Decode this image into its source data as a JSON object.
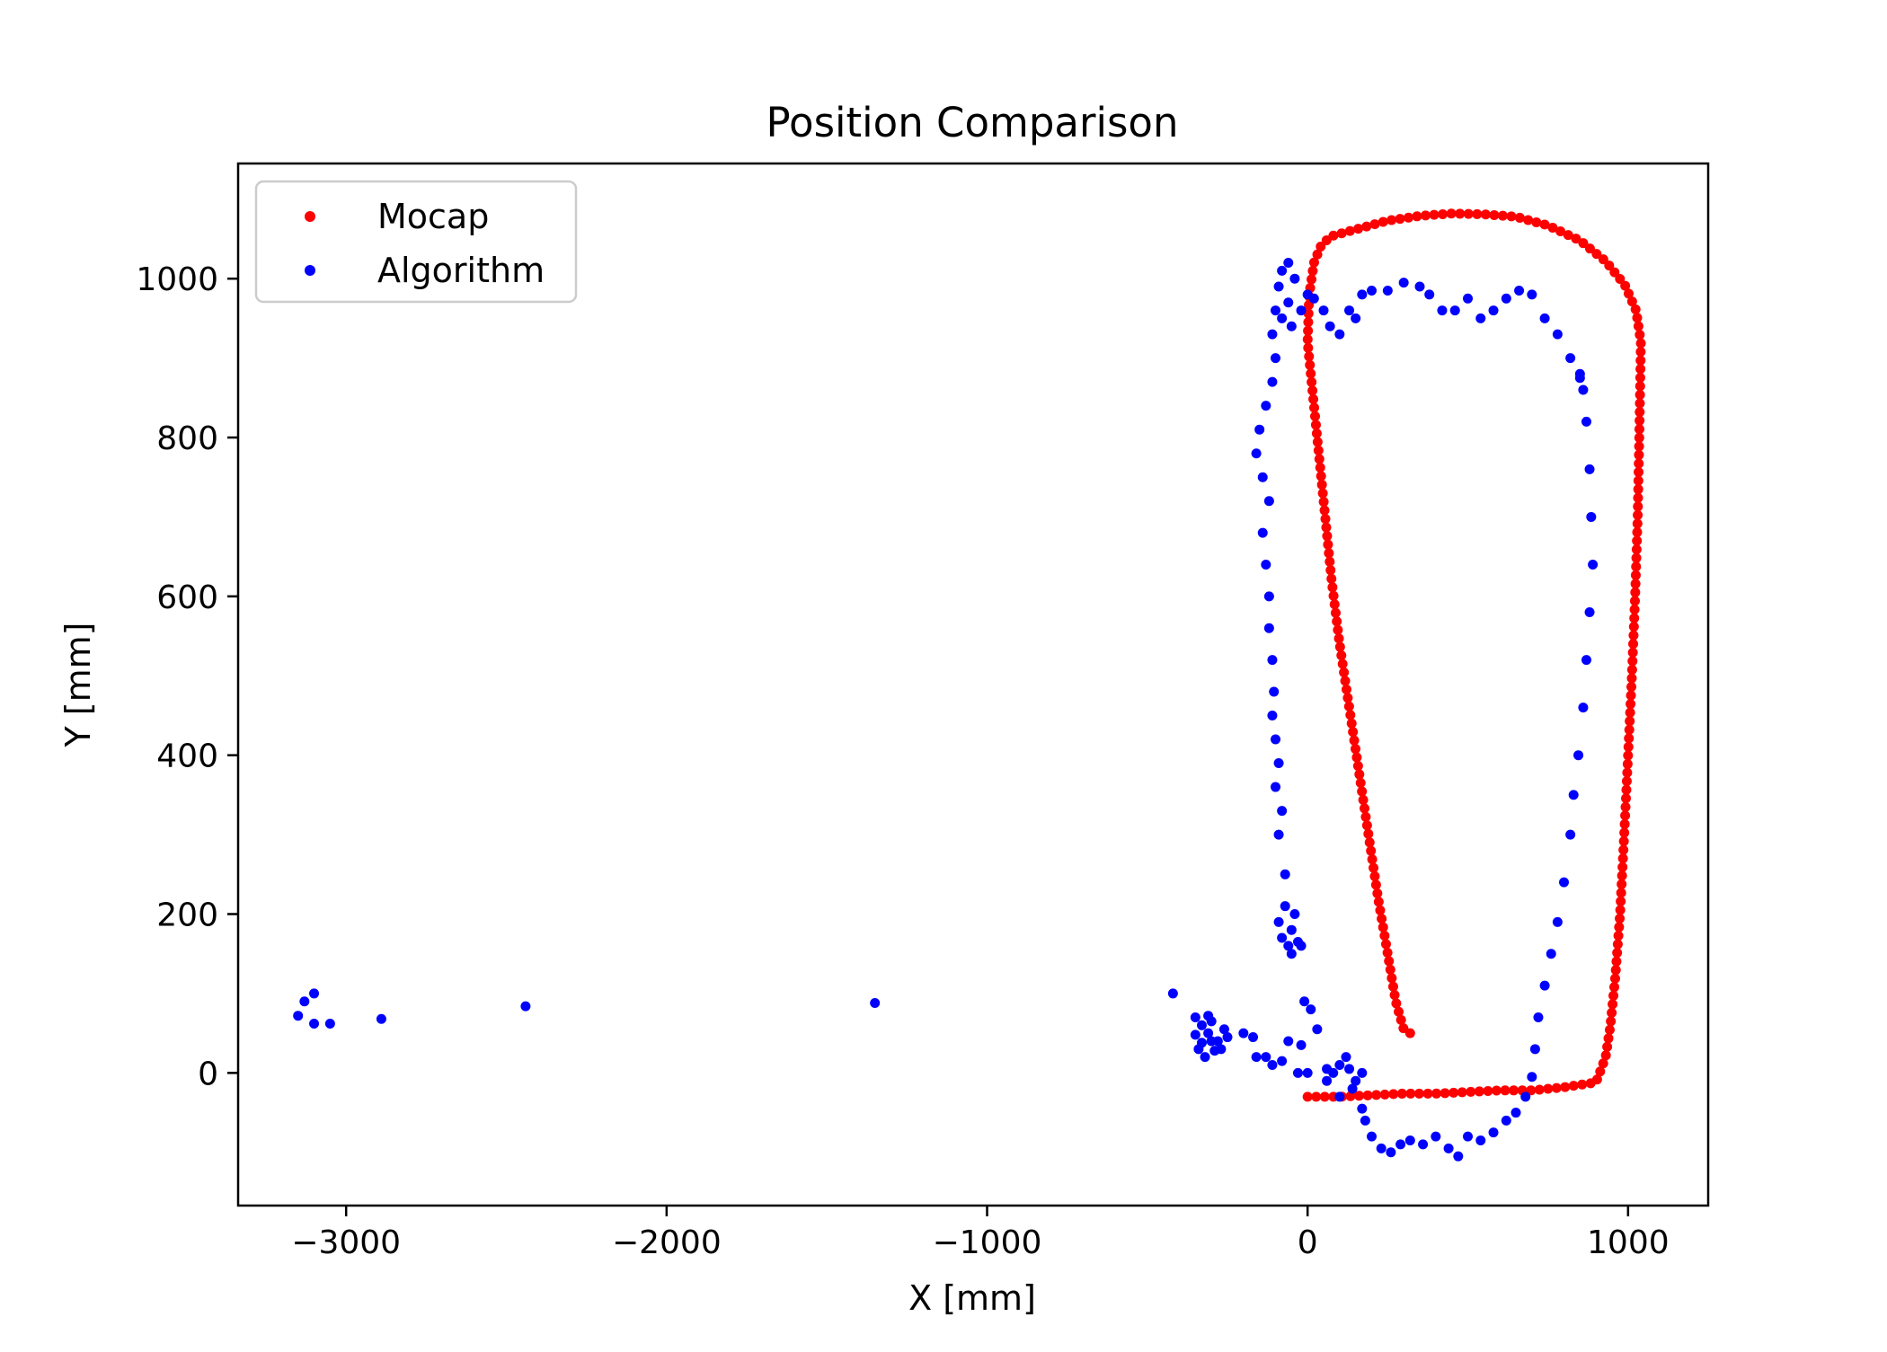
{
  "chart_data": {
    "type": "scatter",
    "title": "Position Comparison",
    "xlabel": "X [mm]",
    "ylabel": "Y [mm]",
    "xlim": [
      -3337,
      1250
    ],
    "ylim": [
      -167,
      1145
    ],
    "xticks": [
      {
        "value": -3000,
        "label": "−3000"
      },
      {
        "value": -2000,
        "label": "−2000"
      },
      {
        "value": -1000,
        "label": "−1000"
      },
      {
        "value": 0,
        "label": "0"
      },
      {
        "value": 1000,
        "label": "1000"
      }
    ],
    "yticks": [
      {
        "value": 0,
        "label": "0"
      },
      {
        "value": 200,
        "label": "200"
      },
      {
        "value": 400,
        "label": "400"
      },
      {
        "value": 600,
        "label": "600"
      },
      {
        "value": 800,
        "label": "800"
      },
      {
        "value": 1000,
        "label": "1000"
      }
    ],
    "grid": false,
    "legend_position": "upper-left",
    "series": [
      {
        "name": "Mocap",
        "color": "#ff0000",
        "trajectory": [
          [
            320,
            50
          ],
          [
            300,
            55
          ],
          [
            275,
            90
          ],
          [
            250,
            150
          ],
          [
            220,
            220
          ],
          [
            190,
            300
          ],
          [
            160,
            380
          ],
          [
            130,
            460
          ],
          [
            100,
            540
          ],
          [
            75,
            620
          ],
          [
            55,
            700
          ],
          [
            35,
            780
          ],
          [
            15,
            860
          ],
          [
            0,
            920
          ],
          [
            5,
            980
          ],
          [
            20,
            1020
          ],
          [
            40,
            1040
          ],
          [
            70,
            1053
          ],
          [
            150,
            1062
          ],
          [
            250,
            1073
          ],
          [
            350,
            1079
          ],
          [
            450,
            1082
          ],
          [
            550,
            1081
          ],
          [
            650,
            1078
          ],
          [
            750,
            1067
          ],
          [
            850,
            1048
          ],
          [
            930,
            1022
          ],
          [
            990,
            992
          ],
          [
            1025,
            960
          ],
          [
            1040,
            920
          ],
          [
            1035,
            800
          ],
          [
            1030,
            700
          ],
          [
            1022,
            600
          ],
          [
            1012,
            500
          ],
          [
            1000,
            400
          ],
          [
            988,
            300
          ],
          [
            975,
            200
          ],
          [
            960,
            120
          ],
          [
            945,
            60
          ],
          [
            930,
            20
          ],
          [
            900,
            -12
          ],
          [
            800,
            -18
          ],
          [
            700,
            -22
          ],
          [
            600,
            -22
          ],
          [
            500,
            -24
          ],
          [
            400,
            -26
          ],
          [
            300,
            -26
          ],
          [
            200,
            -28
          ],
          [
            100,
            -30
          ],
          [
            0,
            -30
          ]
        ],
        "count": 260
      },
      {
        "name": "Algorithm",
        "color": "#0000ff",
        "points": [
          [
            -3150,
            72
          ],
          [
            -3130,
            90
          ],
          [
            -3100,
            100
          ],
          [
            -3100,
            62
          ],
          [
            -3050,
            62
          ],
          [
            -2890,
            68
          ],
          [
            -2440,
            84
          ],
          [
            -1350,
            88
          ],
          [
            -420,
            100
          ],
          [
            -350,
            70
          ],
          [
            -330,
            60
          ],
          [
            -310,
            50
          ],
          [
            -300,
            40
          ],
          [
            -340,
            30
          ],
          [
            -320,
            20
          ],
          [
            -280,
            40
          ],
          [
            -260,
            55
          ],
          [
            -300,
            65
          ],
          [
            -350,
            48
          ],
          [
            -330,
            38
          ],
          [
            -290,
            28
          ],
          [
            -310,
            72
          ],
          [
            -270,
            30
          ],
          [
            -250,
            45
          ],
          [
            -200,
            50
          ],
          [
            -170,
            45
          ],
          [
            -160,
            20
          ],
          [
            -130,
            20
          ],
          [
            -110,
            10
          ],
          [
            -80,
            15
          ],
          [
            -60,
            40
          ],
          [
            -20,
            35
          ],
          [
            -10,
            90
          ],
          [
            10,
            80
          ],
          [
            30,
            55
          ],
          [
            -30,
            0
          ],
          [
            0,
            0
          ],
          [
            60,
            5
          ],
          [
            80,
            0
          ],
          [
            100,
            10
          ],
          [
            120,
            20
          ],
          [
            130,
            5
          ],
          [
            150,
            -10
          ],
          [
            170,
            0
          ],
          [
            100,
            -30
          ],
          [
            60,
            -10
          ],
          [
            140,
            -20
          ],
          [
            170,
            -45
          ],
          [
            180,
            -60
          ],
          [
            200,
            -80
          ],
          [
            230,
            -95
          ],
          [
            260,
            -100
          ],
          [
            290,
            -90
          ],
          [
            320,
            -85
          ],
          [
            360,
            -90
          ],
          [
            400,
            -80
          ],
          [
            440,
            -95
          ],
          [
            470,
            -105
          ],
          [
            500,
            -80
          ],
          [
            540,
            -85
          ],
          [
            580,
            -75
          ],
          [
            620,
            -60
          ],
          [
            650,
            -50
          ],
          [
            680,
            -30
          ],
          [
            700,
            -5
          ],
          [
            710,
            30
          ],
          [
            720,
            70
          ],
          [
            740,
            110
          ],
          [
            760,
            150
          ],
          [
            780,
            190
          ],
          [
            800,
            240
          ],
          [
            820,
            300
          ],
          [
            830,
            350
          ],
          [
            845,
            400
          ],
          [
            860,
            460
          ],
          [
            870,
            520
          ],
          [
            880,
            580
          ],
          [
            890,
            640
          ],
          [
            885,
            700
          ],
          [
            880,
            760
          ],
          [
            870,
            820
          ],
          [
            860,
            860
          ],
          [
            850,
            875
          ],
          [
            -60,
            160
          ],
          [
            -80,
            170
          ],
          [
            -90,
            190
          ],
          [
            -70,
            210
          ],
          [
            -40,
            200
          ],
          [
            -50,
            180
          ],
          [
            -30,
            165
          ],
          [
            -20,
            160
          ],
          [
            -50,
            150
          ],
          [
            -70,
            250
          ],
          [
            -90,
            300
          ],
          [
            -80,
            330
          ],
          [
            -100,
            360
          ],
          [
            -90,
            390
          ],
          [
            -100,
            420
          ],
          [
            -110,
            450
          ],
          [
            -105,
            480
          ],
          [
            -110,
            520
          ],
          [
            -120,
            560
          ],
          [
            -120,
            600
          ],
          [
            -130,
            640
          ],
          [
            -140,
            680
          ],
          [
            -120,
            720
          ],
          [
            -140,
            750
          ],
          [
            -160,
            780
          ],
          [
            -150,
            810
          ],
          [
            -130,
            840
          ],
          [
            -110,
            870
          ],
          [
            -100,
            900
          ],
          [
            -110,
            930
          ],
          [
            -100,
            960
          ],
          [
            -90,
            990
          ],
          [
            -80,
            1010
          ],
          [
            -60,
            1020
          ],
          [
            -40,
            1000
          ],
          [
            -60,
            970
          ],
          [
            -80,
            950
          ],
          [
            -50,
            940
          ],
          [
            -20,
            960
          ],
          [
            0,
            980
          ],
          [
            20,
            975
          ],
          [
            50,
            960
          ],
          [
            70,
            940
          ],
          [
            100,
            930
          ],
          [
            130,
            960
          ],
          [
            150,
            950
          ],
          [
            170,
            980
          ],
          [
            200,
            985
          ],
          [
            250,
            985
          ],
          [
            300,
            995
          ],
          [
            350,
            990
          ],
          [
            380,
            980
          ],
          [
            420,
            960
          ],
          [
            460,
            960
          ],
          [
            500,
            975
          ],
          [
            540,
            950
          ],
          [
            580,
            960
          ],
          [
            620,
            975
          ],
          [
            660,
            985
          ],
          [
            700,
            980
          ],
          [
            740,
            950
          ],
          [
            780,
            930
          ],
          [
            820,
            900
          ],
          [
            850,
            880
          ]
        ]
      }
    ]
  }
}
